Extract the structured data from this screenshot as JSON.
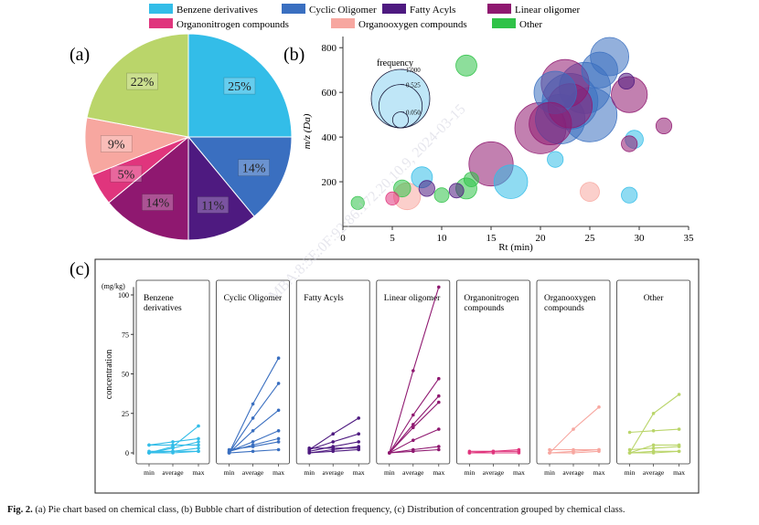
{
  "figure": {
    "panel_labels": [
      "(a)",
      "(b)",
      "(c)"
    ],
    "caption_bold": "Fig. 2.",
    "caption_text": "(a) Pie chart based on chemical class, (b) Bubble chart of distribution of detection frequency, (c) Distribution of concentration grouped by chemical class.",
    "watermark": "MBA:8:5E:0F:92:86:172.20.10.9, 2024-03-15"
  },
  "legend": [
    {
      "name": "Benzene derivatives",
      "color": "#33bde8"
    },
    {
      "name": "Cyclic Oligomer",
      "color": "#3a6fc0"
    },
    {
      "name": "Fatty Acyls",
      "color": "#4e1a80"
    },
    {
      "name": "Linear oligomer",
      "color": "#8f1870"
    },
    {
      "name": "Organonitrogen compounds",
      "color": "#e0357d"
    },
    {
      "name": "Organooxygen compounds",
      "color": "#f7a7a0"
    },
    {
      "name": "Other",
      "color": "#30c248"
    }
  ],
  "chart_data": [
    {
      "type": "pie",
      "panel": "(a)",
      "slices": [
        {
          "category": "Benzene derivatives",
          "value": 25,
          "label": "25%",
          "color": "#33bde8"
        },
        {
          "category": "Cyclic Oligomer",
          "value": 14,
          "label": "14%",
          "color": "#3a6fc0"
        },
        {
          "category": "Fatty Acyls",
          "value": 11,
          "label": "11%",
          "color": "#4e1a80"
        },
        {
          "category": "Linear oligomer",
          "value": 14,
          "label": "14%",
          "color": "#8f1870"
        },
        {
          "category": "Organonitrogen compounds",
          "value": 5,
          "label": "5%",
          "color": "#e0357d"
        },
        {
          "category": "Organooxygen compounds",
          "value": 9,
          "label": "9%",
          "color": "#f7a7a0"
        },
        {
          "category": "Other",
          "value": 22,
          "label": "22%",
          "color": "#bad56a"
        }
      ]
    },
    {
      "type": "scatter",
      "panel": "(b)",
      "xlabel": "Rt (min)",
      "ylabel": "m/z (Da)",
      "xlim": [
        0,
        35
      ],
      "ylim": [
        0,
        850
      ],
      "xticks": [
        0,
        5,
        10,
        15,
        20,
        25,
        30,
        35
      ],
      "yticks": [
        200,
        400,
        600,
        800
      ],
      "size_legend_title": "frequency",
      "size_legend_values": [
        "1.000",
        "0.525",
        "0.050"
      ],
      "points": [
        {
          "x": 25,
          "y": 500,
          "f": 0.85,
          "c": 1
        },
        {
          "x": 23,
          "y": 560,
          "f": 0.9,
          "c": 1
        },
        {
          "x": 24.5,
          "y": 620,
          "f": 0.75,
          "c": 1
        },
        {
          "x": 22,
          "y": 480,
          "f": 0.7,
          "c": 1
        },
        {
          "x": 27,
          "y": 760,
          "f": 0.4,
          "c": 1
        },
        {
          "x": 26,
          "y": 700,
          "f": 0.35,
          "c": 1
        },
        {
          "x": 21.5,
          "y": 600,
          "f": 0.5,
          "c": 1
        },
        {
          "x": 20,
          "y": 440,
          "f": 0.75,
          "c": 3
        },
        {
          "x": 22.5,
          "y": 640,
          "f": 0.65,
          "c": 3
        },
        {
          "x": 23,
          "y": 540,
          "f": 0.55,
          "c": 3
        },
        {
          "x": 21,
          "y": 460,
          "f": 0.5,
          "c": 3
        },
        {
          "x": 29,
          "y": 590,
          "f": 0.35,
          "c": 3
        },
        {
          "x": 15,
          "y": 280,
          "f": 0.55,
          "c": 3
        },
        {
          "x": 32.5,
          "y": 450,
          "f": 0.05,
          "c": 3
        },
        {
          "x": 29,
          "y": 370,
          "f": 0.05,
          "c": 3
        },
        {
          "x": 28.7,
          "y": 650,
          "f": 0.05,
          "c": 2
        },
        {
          "x": 17,
          "y": 200,
          "f": 0.3,
          "c": 0
        },
        {
          "x": 29.5,
          "y": 390,
          "f": 0.07,
          "c": 0
        },
        {
          "x": 8,
          "y": 220,
          "f": 0.1,
          "c": 0
        },
        {
          "x": 21.5,
          "y": 300,
          "f": 0.05,
          "c": 0
        },
        {
          "x": 29,
          "y": 140,
          "f": 0.05,
          "c": 0
        },
        {
          "x": 6.5,
          "y": 135,
          "f": 0.18,
          "c": 5
        },
        {
          "x": 25,
          "y": 155,
          "f": 0.08,
          "c": 5
        },
        {
          "x": 12.5,
          "y": 720,
          "f": 0.1,
          "c": 6
        },
        {
          "x": 12.5,
          "y": 170,
          "f": 0.1,
          "c": 6
        },
        {
          "x": 6,
          "y": 170,
          "f": 0.06,
          "c": 6
        },
        {
          "x": 10,
          "y": 140,
          "f": 0.04,
          "c": 6
        },
        {
          "x": 8.5,
          "y": 170,
          "f": 0.05,
          "c": 2
        },
        {
          "x": 11.5,
          "y": 160,
          "f": 0.04,
          "c": 2
        },
        {
          "x": 13,
          "y": 210,
          "f": 0.04,
          "c": 6
        },
        {
          "x": 1.5,
          "y": 105,
          "f": 0.03,
          "c": 6
        },
        {
          "x": 5,
          "y": 125,
          "f": 0.03,
          "c": 4
        }
      ]
    },
    {
      "type": "line",
      "panel": "(c)",
      "ylabel": "concentration",
      "unit": "(mg/kg)",
      "yticks": [
        0,
        25,
        50,
        75,
        100
      ],
      "ylim": [
        0,
        105
      ],
      "x": [
        "min",
        "average",
        "max"
      ],
      "groups": [
        {
          "name": "Benzene derivatives",
          "color": "#33bde8",
          "lines": [
            [
              0,
              4,
              17
            ],
            [
              5,
              7,
              9
            ],
            [
              0,
              3,
              7
            ],
            [
              5,
              5,
              5
            ],
            [
              0,
              1,
              3
            ],
            [
              0,
              0,
              1
            ],
            [
              1,
              1,
              1
            ]
          ]
        },
        {
          "name": "Cyclic Oligomer",
          "color": "#3a6fc0",
          "lines": [
            [
              0,
              31,
              60
            ],
            [
              0,
              22,
              44
            ],
            [
              0,
              14,
              27
            ],
            [
              1,
              7,
              14
            ],
            [
              1,
              5,
              9
            ],
            [
              2,
              4,
              7
            ],
            [
              0,
              1,
              2
            ]
          ]
        },
        {
          "name": "Fatty Acyls",
          "color": "#4e1a80",
          "lines": [
            [
              2,
              12,
              22
            ],
            [
              2,
              7,
              12
            ],
            [
              1,
              4,
              7
            ],
            [
              0,
              2,
              4
            ],
            [
              0,
              1,
              2
            ],
            [
              3,
              3,
              3
            ]
          ]
        },
        {
          "name": "Linear oligomer",
          "color": "#8f1870",
          "lines": [
            [
              0,
              52,
              105
            ],
            [
              0,
              24,
              47
            ],
            [
              0,
              18,
              36
            ],
            [
              0,
              16,
              32
            ],
            [
              0,
              8,
              15
            ],
            [
              0,
              2,
              4
            ],
            [
              0,
              1,
              2
            ]
          ]
        },
        {
          "name": "Organonitrogen compounds",
          "color": "#e0357d",
          "lines": [
            [
              0,
              1,
              2
            ],
            [
              1,
              1,
              1
            ],
            [
              0,
              0,
              0
            ]
          ]
        },
        {
          "name": "Organooxygen compounds",
          "color": "#f7a7a0",
          "lines": [
            [
              0,
              15,
              29
            ],
            [
              2,
              2,
              2
            ],
            [
              0,
              1,
              2
            ],
            [
              0,
              0,
              1
            ]
          ]
        },
        {
          "name": "Other",
          "color": "#bad56a",
          "lines": [
            [
              0,
              25,
              37
            ],
            [
              13,
              14,
              15
            ],
            [
              0,
              5,
              5
            ],
            [
              2,
              3,
              4
            ],
            [
              0,
              1,
              1
            ],
            [
              0,
              0,
              1
            ]
          ]
        }
      ]
    }
  ]
}
